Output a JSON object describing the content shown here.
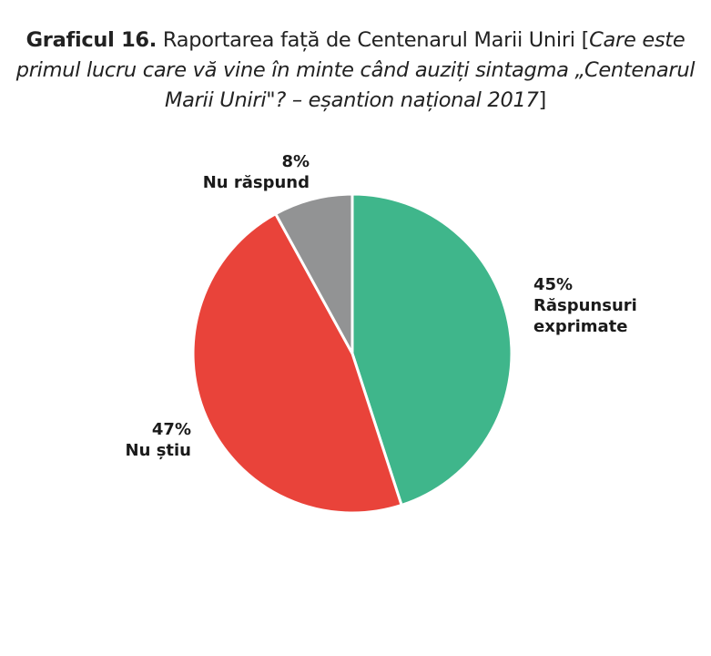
{
  "title": {
    "bold_part": "Graficul 16.",
    "regular_part": " Raportarea față de Centenarul Marii Uniri [",
    "italic_part": "Care este primul lucru care vă vine în minte când auziți sintagma „Centenarul Marii Uniri\"? – eșantion național 2017",
    "closing": "]"
  },
  "labels": {
    "answered": {
      "pct": "45%",
      "line1": "Răspunsuri",
      "line2": "exprimate"
    },
    "dont_know": {
      "pct": "47%",
      "line1": "Nu știu"
    },
    "no_answer": {
      "pct": "8%",
      "line1": "Nu răspund"
    }
  },
  "colors": {
    "answered": "#3fb68b",
    "dont_know": "#e9433a",
    "no_answer": "#929394",
    "separator": "#ffffff"
  },
  "chart_data": {
    "type": "pie",
    "title": "Graficul 16. Raportarea față de Centenarul Marii Uniri [Care este primul lucru care vă vine în minte când auziți sintagma „Centenarul Marii Uniri\"? – eșantion național 2017]",
    "categories": [
      "Răspunsuri exprimate",
      "Nu știu",
      "Nu răspund"
    ],
    "values": [
      45,
      47,
      8
    ],
    "unit": "%",
    "start_angle": "12 o'clock, clockwise",
    "legend": "none (direct labels)"
  }
}
